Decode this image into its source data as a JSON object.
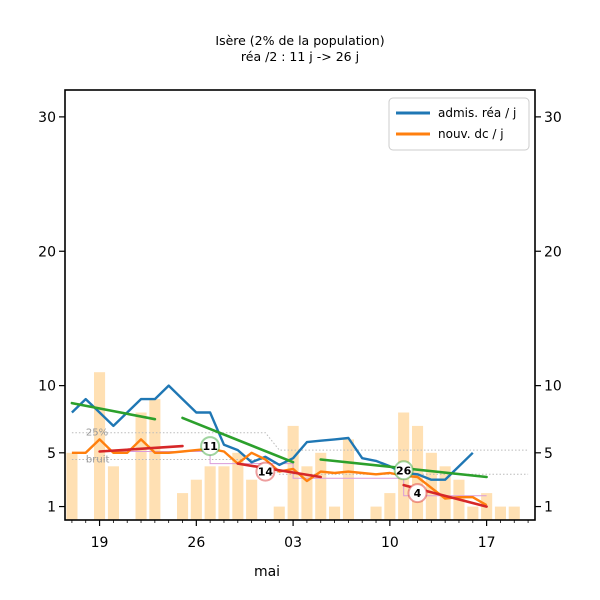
{
  "chart_data": {
    "type": "line",
    "title": "Isère (2% de la population)",
    "subtitle": "réa /2 : 11 j -> 26 j",
    "xlabel": "mai",
    "ylabel": "",
    "x_tick_labels": [
      "19",
      "26",
      "03",
      "10",
      "17"
    ],
    "x_tick_days": [
      2,
      9,
      16,
      23,
      30
    ],
    "xlim": [
      -0.5,
      33.5
    ],
    "ylim": [
      0,
      32
    ],
    "y_ticks": [
      1,
      5,
      10,
      20,
      30
    ],
    "legend": {
      "position": "top-right",
      "entries": [
        {
          "label": "admis. réa / j",
          "color": "#1f77b4"
        },
        {
          "label": "nouv. dc / j",
          "color": "#ff7f0e"
        }
      ]
    },
    "bars": {
      "color": "#ffe0b3",
      "x": [
        0,
        1,
        2,
        3,
        4,
        5,
        6,
        7,
        8,
        9,
        10,
        11,
        12,
        13,
        14,
        15,
        16,
        17,
        18,
        19,
        20,
        21,
        22,
        23,
        24,
        25,
        26,
        27,
        28,
        29,
        30,
        31,
        32
      ],
      "values": [
        5,
        0,
        11,
        4,
        0,
        8,
        9,
        0,
        2,
        3,
        4,
        4,
        5,
        3,
        0,
        1,
        7,
        4,
        5,
        1,
        6,
        0,
        1,
        2,
        8,
        7,
        5,
        4,
        3,
        1,
        2,
        1,
        1
      ]
    },
    "series": [
      {
        "name": "admis. réa / j",
        "color": "#1f77b4",
        "x": [
          0,
          1,
          2,
          3,
          4,
          5,
          6,
          7,
          8,
          9,
          10,
          11,
          12,
          13,
          14,
          15,
          16,
          17,
          18,
          19,
          20,
          21,
          22,
          23,
          24,
          25,
          26,
          27,
          28,
          29
        ],
        "values": [
          8,
          9,
          8,
          7,
          8,
          9,
          9,
          10,
          9,
          8,
          8,
          5.6,
          5.2,
          4.3,
          4.7,
          4.1,
          4.6,
          5.8,
          5.9,
          6,
          6.1,
          4.6,
          4.4,
          4,
          3.5,
          3.4,
          3,
          3,
          4,
          5
        ]
      },
      {
        "name": "nouv. dc / j",
        "color": "#ff7f0e",
        "x": [
          0,
          1,
          2,
          3,
          4,
          5,
          6,
          7,
          8,
          9,
          10,
          11,
          12,
          13,
          14,
          15,
          16,
          17,
          18,
          19,
          20,
          21,
          22,
          23,
          24,
          25,
          26,
          27,
          28,
          29,
          30
        ],
        "values": [
          5,
          5,
          6,
          5,
          5,
          6,
          5,
          5,
          5.1,
          5.2,
          5.3,
          5.1,
          4.2,
          5,
          4.5,
          3.6,
          3.8,
          2.9,
          3.6,
          3.5,
          3.6,
          3.5,
          3.4,
          3.5,
          3.3,
          3.2,
          2.4,
          1.6,
          1.7,
          1.7,
          1.1
        ]
      }
    ],
    "trend_lines": [
      {
        "color": "#2ca02c",
        "x": [
          0,
          6
        ],
        "values": [
          8.7,
          7.5
        ]
      },
      {
        "color": "#2ca02c",
        "x": [
          8,
          16
        ],
        "values": [
          7.6,
          4.3
        ]
      },
      {
        "color": "#2ca02c",
        "x": [
          18,
          30
        ],
        "values": [
          4.5,
          3.2
        ]
      },
      {
        "color": "#d62728",
        "x": [
          2,
          8
        ],
        "values": [
          5.1,
          5.5
        ]
      },
      {
        "color": "#d62728",
        "x": [
          12,
          18
        ],
        "values": [
          4.2,
          3.2
        ]
      },
      {
        "color": "#d62728",
        "x": [
          24,
          30
        ],
        "values": [
          2.6,
          1
        ]
      }
    ],
    "reference_lines": [
      {
        "label": "25%",
        "color": "#bbbbbb",
        "x": [
          0,
          14,
          15,
          33
        ],
        "values": [
          6.5,
          6.5,
          5.2,
          5.2
        ]
      },
      {
        "label": "bruit",
        "color": "#bbbbbb",
        "x": [
          0,
          14,
          15,
          33
        ],
        "values": [
          4.5,
          4.5,
          3.4,
          3.4
        ]
      }
    ],
    "band_line": {
      "color": "#d99bd9",
      "x": [
        2,
        10,
        10,
        16,
        16,
        24,
        24,
        30
      ],
      "values": [
        5.1,
        5.1,
        4.2,
        4.2,
        3.1,
        3.1,
        1.8,
        1.8
      ]
    },
    "badges": [
      {
        "label": "11",
        "x": 10,
        "y": 5.5,
        "color": "#2ca02c"
      },
      {
        "label": "14",
        "x": 14,
        "y": 3.6,
        "color": "#d62728"
      },
      {
        "label": "26",
        "x": 24,
        "y": 3.7,
        "color": "#2ca02c"
      },
      {
        "label": "4",
        "x": 25,
        "y": 2,
        "color": "#d62728"
      }
    ]
  }
}
